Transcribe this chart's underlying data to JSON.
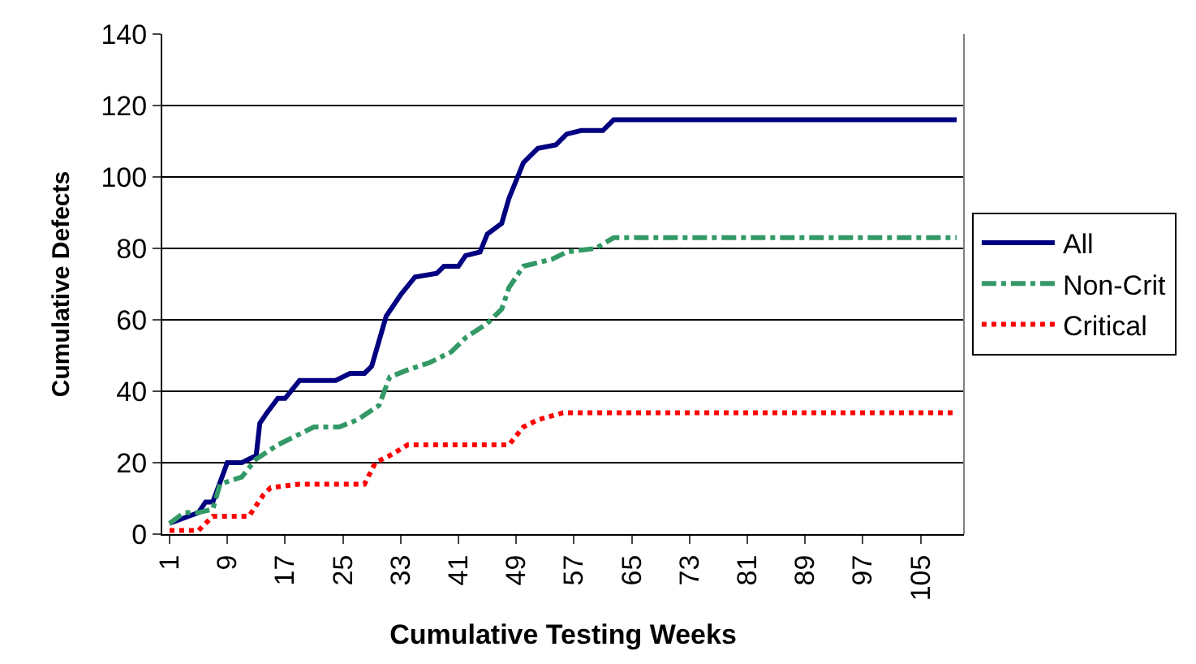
{
  "chart_data": {
    "type": "line",
    "xlabel": "Cumulative Testing Weeks",
    "ylabel": "Cumulative Defects",
    "xlim": [
      0,
      111
    ],
    "xticks": [
      1,
      9,
      17,
      25,
      33,
      41,
      49,
      57,
      65,
      73,
      81,
      89,
      97,
      105
    ],
    "ylim": [
      0,
      140
    ],
    "yticks": [
      0,
      20,
      40,
      60,
      80,
      100,
      120,
      140
    ],
    "grid": "y",
    "legend": "right",
    "marker": "none",
    "series": [
      {
        "name": "All",
        "color": "#000080",
        "line_style": "solid",
        "x": [
          1,
          5,
          6,
          7,
          9,
          11,
          13,
          13.5,
          14.5,
          16,
          17,
          19,
          24,
          26,
          28,
          29,
          31,
          33,
          35,
          38,
          39,
          41,
          42,
          44,
          45,
          47,
          48,
          50,
          52,
          54.5,
          56,
          58,
          61,
          62.5,
          110
        ],
        "values": [
          3,
          6,
          9,
          9,
          20,
          20,
          22,
          31,
          34,
          38,
          38,
          43,
          43,
          45,
          45,
          47,
          61,
          67,
          72,
          73,
          75,
          75,
          78,
          79,
          84,
          87,
          94,
          104,
          108,
          109,
          112,
          113,
          113,
          116,
          116
        ]
      },
      {
        "name": "Non-Crit",
        "color": "#339966",
        "line_style": "dashdot",
        "x": [
          1,
          3,
          5,
          7,
          8,
          11,
          13,
          16,
          18,
          21,
          24.5,
          27,
          30,
          31.5,
          34,
          37,
          40,
          42,
          45,
          47,
          48,
          50,
          54,
          56,
          60,
          62.5,
          110
        ],
        "values": [
          3,
          6,
          6,
          7,
          14,
          16,
          21,
          25,
          27,
          30,
          30,
          32,
          36,
          44,
          46,
          48,
          51,
          55,
          59,
          63,
          69,
          75,
          77,
          79,
          80,
          83,
          83
        ]
      },
      {
        "name": "Critical",
        "color": "#ff0000",
        "line_style": "dotted",
        "x": [
          1,
          5,
          7,
          12,
          14,
          15,
          19,
          28,
          29.5,
          31.5,
          34,
          48,
          50,
          52,
          55.5,
          110
        ],
        "values": [
          1,
          1,
          5,
          5,
          11,
          13,
          14,
          14,
          20,
          22,
          25,
          25,
          30,
          32,
          34,
          34
        ]
      }
    ]
  }
}
